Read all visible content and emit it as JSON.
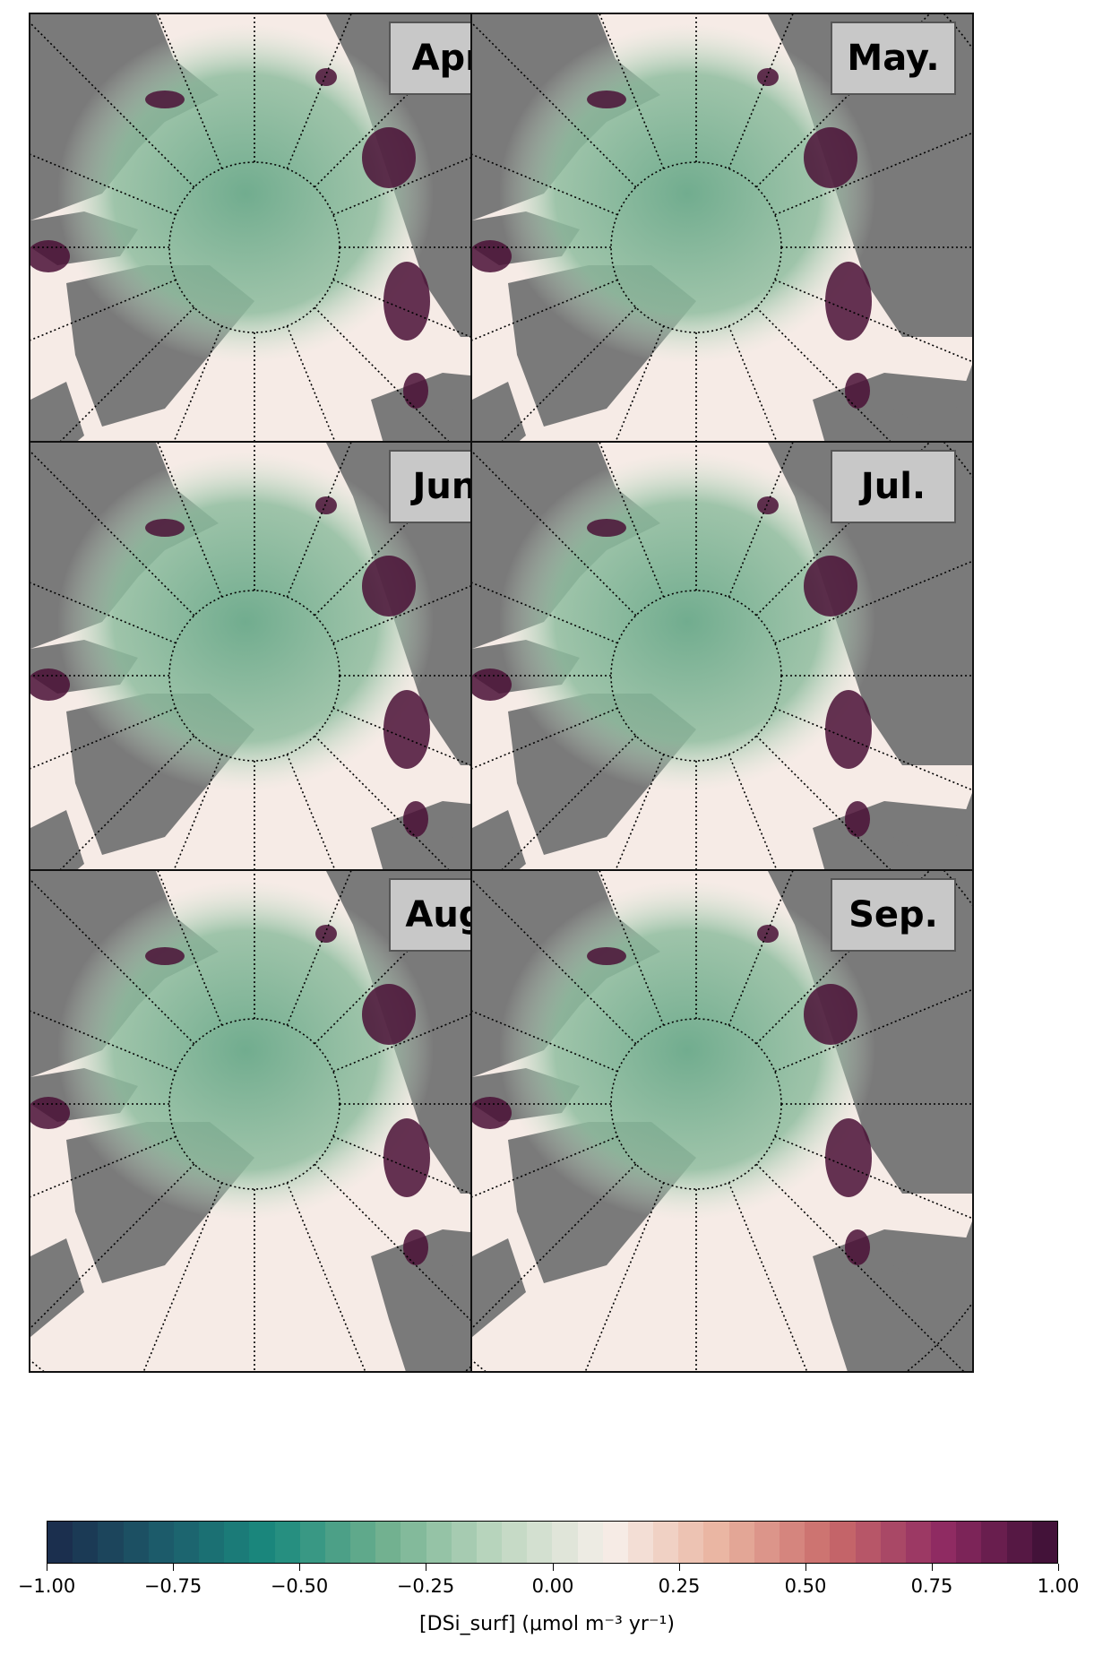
{
  "panels": [
    {
      "label": "Apr."
    },
    {
      "label": "May."
    },
    {
      "label": "Jun."
    },
    {
      "label": "Jul."
    },
    {
      "label": "Aug."
    },
    {
      "label": "Sep."
    }
  ],
  "colorbar": {
    "min": -1.0,
    "max": 1.0,
    "ticks": [
      "−1.00",
      "−0.75",
      "−0.50",
      "−0.25",
      "0.00",
      "0.25",
      "0.50",
      "0.75",
      "1.00"
    ],
    "title": "[DSi_surf] (μmol m⁻³ yr⁻¹)",
    "bins": 40,
    "colors_low_to_high": [
      "#1b2a4a",
      "#1c5a6a",
      "#1a8a7e",
      "#6fb08e",
      "#bcd6bf",
      "#f7efea",
      "#e9b4a0",
      "#c96a6a",
      "#8e2a62",
      "#3a0f34"
    ]
  },
  "map_colors": {
    "land": "#7a7a7a",
    "ocean_neutral": "#f6ebe6",
    "ocean_green": "#6aa98a",
    "ocean_red": "#4a1036",
    "graticule": "#000000"
  }
}
